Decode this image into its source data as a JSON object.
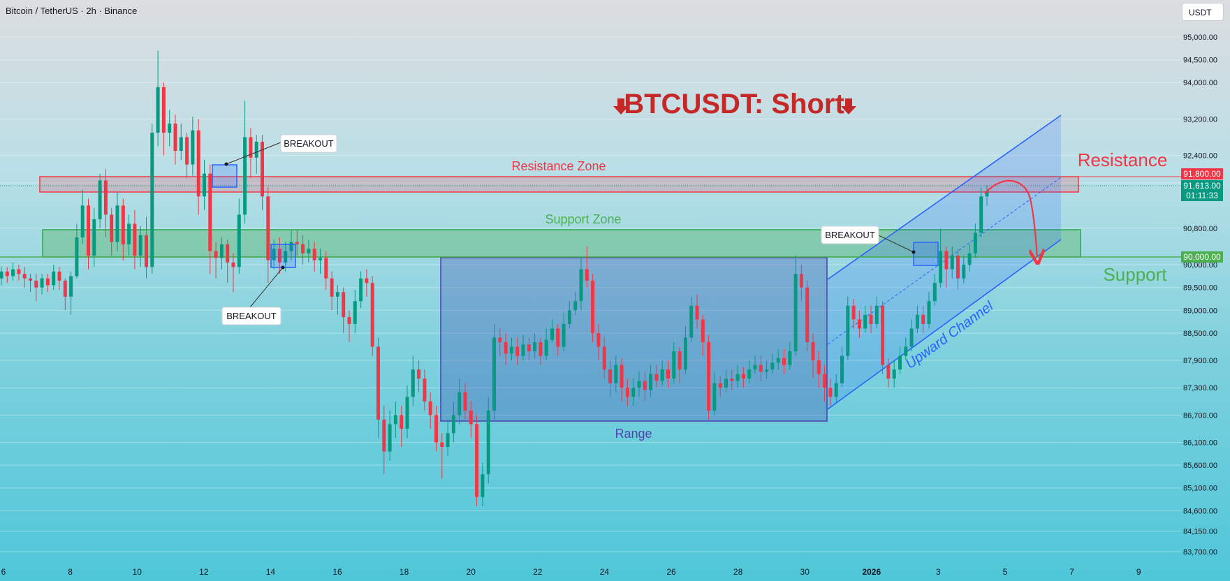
{
  "header": {
    "symbol": "Bitcoin / TetherUS · 2h · Binance",
    "currency": "USDT"
  },
  "chart_data": {
    "type": "candlestick",
    "title": "BTCUSDT: Short",
    "y_axis": {
      "ticks": [
        95000,
        94500,
        94000,
        93200,
        92400,
        91800,
        90800,
        90000,
        89500,
        89000,
        88500,
        87900,
        87300,
        86700,
        86100,
        85600,
        85100,
        84600,
        84150,
        83700
      ],
      "labels": [
        "95,000.00",
        "94,500.00",
        "94,000.00",
        "93,200.00",
        "92,400.00",
        "91,800.00",
        "90,800.00",
        "90,000.00",
        "89,500.00",
        "89,000.00",
        "88,500.00",
        "87,900.00",
        "87,300.00",
        "86,700.00",
        "86,100.00",
        "85,600.00",
        "85,100.00",
        "84,600.00",
        "84,150.00",
        "83,700.00"
      ]
    },
    "x_axis": {
      "ticks": [
        "6",
        "8",
        "10",
        "12",
        "14",
        "16",
        "18",
        "20",
        "22",
        "24",
        "26",
        "28",
        "30",
        "2026",
        "3",
        "5",
        "7",
        "9"
      ]
    },
    "price_tags": [
      {
        "value": "91,800.00",
        "color": "#f23645"
      },
      {
        "value": "91,613.00",
        "countdown": "01:11:33",
        "color": "#089981"
      },
      {
        "value": "90,000.00",
        "color": "#4caf50"
      }
    ],
    "zones": [
      {
        "name": "Resistance Zone",
        "from": 91450,
        "to": 91800,
        "color": "#f23645"
      },
      {
        "name": "Support Zone",
        "from": 90000,
        "to": 90550,
        "color": "#2aa84a"
      },
      {
        "name": "Range",
        "from": 86400,
        "to": 90000,
        "color": "#3f51b5"
      }
    ],
    "labels": {
      "resistance": "Resistance",
      "support": "Support",
      "channel": "Upward Channel",
      "breakout": "BREAKOUT"
    },
    "colors": {
      "up": "#089981",
      "down": "#f23645",
      "resistance": "#f23645",
      "support": "#4caf50",
      "channel": "#2962ff",
      "title": "#c62828"
    },
    "candles": [
      [
        89700,
        89850,
        89950,
        89550
      ],
      [
        89850,
        89750,
        89950,
        89600
      ],
      [
        89750,
        89900,
        90050,
        89650
      ],
      [
        89900,
        89800,
        90000,
        89650
      ],
      [
        89800,
        89700,
        89950,
        89500
      ],
      [
        89700,
        89650,
        89800,
        89400
      ],
      [
        89650,
        89500,
        89800,
        89200
      ],
      [
        89500,
        89700,
        89800,
        89350
      ],
      [
        89700,
        89550,
        89800,
        89400
      ],
      [
        89550,
        89850,
        90000,
        89450
      ],
      [
        89850,
        89650,
        89950,
        89450
      ],
      [
        89650,
        89300,
        89700,
        89000
      ],
      [
        89300,
        89750,
        89850,
        88900
      ],
      [
        89750,
        90600,
        90900,
        89700
      ],
      [
        90600,
        91300,
        91650,
        90450
      ],
      [
        91300,
        90200,
        91450,
        89900
      ],
      [
        90200,
        91000,
        91250,
        89950
      ],
      [
        91000,
        91850,
        92000,
        90800
      ],
      [
        91850,
        91100,
        92100,
        90600
      ],
      [
        91100,
        90500,
        91250,
        90200
      ],
      [
        90500,
        91300,
        91600,
        90300
      ],
      [
        91300,
        90450,
        91450,
        90100
      ],
      [
        90450,
        90900,
        91100,
        90200
      ],
      [
        90900,
        90200,
        91200,
        89900
      ],
      [
        90200,
        90650,
        90850,
        89950
      ],
      [
        90650,
        89950,
        91050,
        89700
      ],
      [
        89950,
        92900,
        93100,
        89800
      ],
      [
        92900,
        93900,
        94700,
        92600
      ],
      [
        93900,
        92900,
        94000,
        92400
      ],
      [
        92900,
        93100,
        93400,
        92600
      ],
      [
        93100,
        92500,
        93300,
        92200
      ],
      [
        92500,
        92800,
        93100,
        92300
      ],
      [
        92800,
        92200,
        92900,
        91900
      ],
      [
        92200,
        92950,
        93250,
        91950
      ],
      [
        92950,
        91500,
        93200,
        91100
      ],
      [
        91500,
        92000,
        92300,
        91200
      ],
      [
        92000,
        90300,
        92200,
        89800
      ],
      [
        90300,
        90150,
        90500,
        89700
      ],
      [
        90150,
        90450,
        90600,
        89900
      ],
      [
        90450,
        90050,
        90550,
        89600
      ],
      [
        90050,
        89950,
        90250,
        89400
      ],
      [
        89950,
        91100,
        91450,
        89800
      ],
      [
        91100,
        92800,
        93600,
        90900
      ],
      [
        92800,
        92350,
        93000,
        91900
      ],
      [
        92350,
        92700,
        92850,
        92000
      ],
      [
        92700,
        91500,
        92850,
        91200
      ],
      [
        91500,
        90100,
        91700,
        89600
      ],
      [
        90100,
        90350,
        90550,
        89900
      ],
      [
        90350,
        90050,
        90600,
        89800
      ],
      [
        90050,
        90300,
        90500,
        89850
      ],
      [
        90300,
        90500,
        90750,
        90100
      ],
      [
        90500,
        90450,
        90750,
        90200
      ],
      [
        90450,
        90250,
        90650,
        90000
      ],
      [
        90250,
        90350,
        90550,
        90050
      ],
      [
        90350,
        90100,
        90500,
        89850
      ],
      [
        90100,
        90150,
        90350,
        89800
      ],
      [
        90150,
        89700,
        90300,
        89450
      ],
      [
        89700,
        89300,
        89850,
        89000
      ],
      [
        89300,
        89400,
        89550,
        88900
      ],
      [
        89400,
        88850,
        89500,
        88500
      ],
      [
        88850,
        88700,
        89000,
        88300
      ],
      [
        88700,
        89200,
        89450,
        88500
      ],
      [
        89200,
        89700,
        89850,
        89050
      ],
      [
        89700,
        89600,
        89900,
        89300
      ],
      [
        89600,
        88200,
        89750,
        88000
      ],
      [
        88200,
        86600,
        88400,
        86200
      ],
      [
        86600,
        85900,
        86900,
        85400
      ],
      [
        85900,
        86500,
        86800,
        85700
      ],
      [
        86500,
        86700,
        87000,
        86200
      ],
      [
        86700,
        86400,
        86900,
        86000
      ],
      [
        86400,
        87100,
        87350,
        86200
      ],
      [
        87100,
        87700,
        88000,
        86900
      ],
      [
        87700,
        87500,
        87900,
        87200
      ],
      [
        87500,
        87000,
        87700,
        86800
      ],
      [
        87000,
        86700,
        87200,
        86400
      ],
      [
        86700,
        86100,
        86900,
        85900
      ],
      [
        86100,
        86000,
        86300,
        85300
      ],
      [
        86000,
        86300,
        86600,
        85800
      ],
      [
        86300,
        86700,
        87000,
        86100
      ],
      [
        86700,
        87200,
        87500,
        86500
      ],
      [
        87200,
        86800,
        87400,
        86600
      ],
      [
        86800,
        86500,
        87000,
        86200
      ],
      [
        86500,
        84900,
        86700,
        84700
      ],
      [
        84900,
        85400,
        85650,
        84700
      ],
      [
        85400,
        86800,
        87100,
        85200
      ],
      [
        86800,
        88400,
        88700,
        86600
      ],
      [
        88400,
        88300,
        88600,
        88000
      ],
      [
        88300,
        88050,
        88500,
        87800
      ],
      [
        88050,
        88200,
        88400,
        87900
      ],
      [
        88200,
        88000,
        88400,
        87800
      ],
      [
        88000,
        88250,
        88450,
        87900
      ],
      [
        88250,
        88100,
        88400,
        87900
      ],
      [
        88100,
        88300,
        88500,
        87950
      ],
      [
        88300,
        88000,
        88400,
        87800
      ],
      [
        88000,
        88350,
        88600,
        87900
      ],
      [
        88350,
        88600,
        88800,
        88300
      ],
      [
        88600,
        88200,
        88700,
        88000
      ],
      [
        88200,
        88700,
        88950,
        88100
      ],
      [
        88700,
        89000,
        89200,
        88600
      ],
      [
        89000,
        89200,
        89400,
        88900
      ],
      [
        89200,
        89900,
        90150,
        89000
      ],
      [
        89900,
        89650,
        90400,
        89500
      ],
      [
        89650,
        88500,
        89800,
        88300
      ],
      [
        88500,
        88200,
        88700,
        87900
      ],
      [
        88200,
        87700,
        88400,
        87500
      ],
      [
        87700,
        87400,
        87900,
        87100
      ],
      [
        87400,
        87800,
        88000,
        87200
      ],
      [
        87800,
        87300,
        87950,
        87000
      ],
      [
        87300,
        87100,
        87500,
        86900
      ],
      [
        87100,
        87300,
        87500,
        86900
      ],
      [
        87300,
        87450,
        87650,
        87100
      ],
      [
        87450,
        87250,
        87650,
        87000
      ],
      [
        87250,
        87600,
        87800,
        87100
      ],
      [
        87600,
        87450,
        87800,
        87300
      ],
      [
        87450,
        87700,
        87900,
        87350
      ],
      [
        87700,
        87500,
        87900,
        87300
      ],
      [
        87500,
        88100,
        88300,
        87400
      ],
      [
        88100,
        87700,
        88200,
        87400
      ],
      [
        87700,
        88400,
        88650,
        87600
      ],
      [
        88400,
        89100,
        89300,
        88300
      ],
      [
        89100,
        88800,
        89350,
        88600
      ],
      [
        88800,
        88300,
        88900,
        88000
      ],
      [
        88300,
        86800,
        88450,
        86600
      ],
      [
        86800,
        87400,
        87650,
        86700
      ],
      [
        87400,
        87300,
        87550,
        87100
      ],
      [
        87300,
        87500,
        87700,
        87200
      ],
      [
        87500,
        87450,
        87700,
        87250
      ],
      [
        87450,
        87600,
        87800,
        87300
      ],
      [
        87600,
        87500,
        87750,
        87300
      ],
      [
        87500,
        87700,
        87900,
        87400
      ],
      [
        87700,
        87800,
        88000,
        87600
      ],
      [
        87800,
        87650,
        88000,
        87450
      ],
      [
        87650,
        87700,
        87900,
        87500
      ],
      [
        87700,
        87850,
        88050,
        87600
      ],
      [
        87850,
        87950,
        88150,
        87700
      ],
      [
        87950,
        87800,
        88150,
        87600
      ],
      [
        87800,
        88100,
        88300,
        87700
      ],
      [
        88100,
        89800,
        90200,
        88000
      ],
      [
        89800,
        89500,
        90000,
        89200
      ],
      [
        89500,
        88300,
        89650,
        88100
      ],
      [
        88300,
        87900,
        88500,
        87500
      ],
      [
        87900,
        87600,
        88100,
        87300
      ],
      [
        87600,
        87300,
        87800,
        87000
      ],
      [
        87300,
        87100,
        87500,
        86900
      ],
      [
        87100,
        87400,
        87600,
        86950
      ],
      [
        87400,
        88000,
        88200,
        87300
      ],
      [
        88000,
        89100,
        89300,
        87900
      ],
      [
        89100,
        88800,
        89250,
        88600
      ],
      [
        88800,
        88600,
        89000,
        88400
      ],
      [
        88600,
        88900,
        89100,
        88500
      ],
      [
        88900,
        88700,
        89100,
        88500
      ],
      [
        88700,
        89100,
        89300,
        88600
      ],
      [
        89100,
        87800,
        89200,
        87600
      ],
      [
        87800,
        87500,
        87950,
        87300
      ],
      [
        87500,
        87700,
        87900,
        87300
      ],
      [
        87700,
        88000,
        88200,
        87600
      ],
      [
        88000,
        88200,
        88400,
        87900
      ],
      [
        88200,
        88600,
        88800,
        88100
      ],
      [
        88600,
        88900,
        89100,
        88500
      ],
      [
        88900,
        88700,
        89100,
        88500
      ],
      [
        88700,
        89200,
        89400,
        88600
      ],
      [
        89200,
        89600,
        89800,
        89100
      ],
      [
        89600,
        90300,
        90800,
        89500
      ],
      [
        90300,
        89900,
        90400,
        89500
      ],
      [
        89900,
        90200,
        90400,
        89700
      ],
      [
        90200,
        89700,
        90350,
        89450
      ],
      [
        89700,
        90000,
        90200,
        89600
      ],
      [
        90000,
        90250,
        90450,
        89850
      ],
      [
        90250,
        90700,
        90900,
        90150
      ],
      [
        90700,
        91500,
        91700,
        90600
      ],
      [
        91500,
        91613,
        91750,
        91300
      ]
    ]
  }
}
